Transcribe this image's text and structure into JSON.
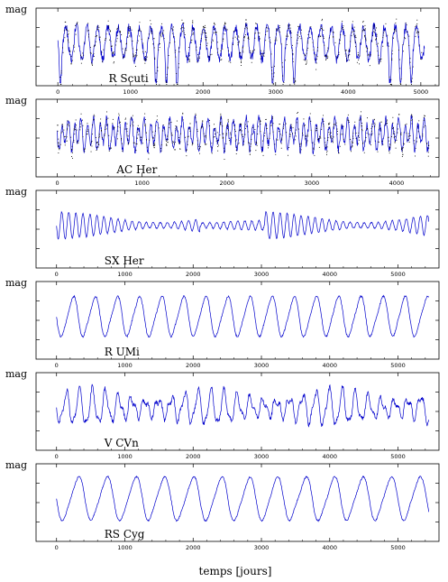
{
  "figure": {
    "xlabel": "temps [jours]"
  },
  "colors": {
    "curve": "#0000cc",
    "points": "#000000",
    "frame": "#000000"
  },
  "chart_data": [
    {
      "type": "line",
      "ylabel": "mag",
      "star": "R Scuti",
      "xlim": [
        -300,
        5250
      ],
      "xticks": [
        0,
        1000,
        2000,
        3000,
        4000,
        5000
      ],
      "xtick_labels": [
        "0",
        "1000",
        "2000",
        "3000",
        "4000",
        "5000"
      ],
      "xmax_data": 5050,
      "period": 146,
      "amp": 0.7,
      "noise": 0.18,
      "mode": "rsct",
      "points_density": 1.0
    },
    {
      "type": "line",
      "ylabel": "mag",
      "star": "AC Her",
      "xlim": [
        -250,
        4500
      ],
      "xticks": [
        0,
        1000,
        2000,
        3000,
        4000
      ],
      "xtick_labels": [
        "0",
        "1000",
        "2000",
        "3000",
        "4000"
      ],
      "xmax_data": 4380,
      "period": 75,
      "amp": 0.45,
      "noise": 0.22,
      "mode": "ach",
      "points_density": 1.0
    },
    {
      "type": "line",
      "ylabel": "mag",
      "star": "SX Her",
      "xlim": [
        -300,
        5600
      ],
      "xticks": [
        0,
        1000,
        2000,
        3000,
        4000,
        5000
      ],
      "xtick_labels": [
        "0",
        "1000",
        "2000",
        "3000",
        "4000",
        "5000"
      ],
      "xmax_data": 5450,
      "period": 103,
      "amp": 0.35,
      "noise": 0.05,
      "mode": "sxh",
      "points_density": 0.0
    },
    {
      "type": "line",
      "ylabel": "mag",
      "star": "R UMi",
      "xlim": [
        -300,
        5600
      ],
      "xticks": [
        0,
        1000,
        2000,
        3000,
        4000,
        5000
      ],
      "xtick_labels": [
        "0",
        "1000",
        "2000",
        "3000",
        "4000",
        "5000"
      ],
      "xmax_data": 5450,
      "period": 326,
      "amp": 0.55,
      "noise": 0.04,
      "mode": "smooth",
      "points_density": 0.0
    },
    {
      "type": "line",
      "ylabel": "mag",
      "star": "V CVn",
      "xlim": [
        -300,
        5600
      ],
      "xticks": [
        0,
        1000,
        2000,
        3000,
        4000,
        5000
      ],
      "xtick_labels": [
        "0",
        "1000",
        "2000",
        "3000",
        "4000",
        "5000"
      ],
      "xmax_data": 5450,
      "period": 192,
      "amp": 0.45,
      "noise": 0.12,
      "mode": "vcvn",
      "points_density": 0.0
    },
    {
      "type": "line",
      "ylabel": "mag",
      "star": "RS Cyg",
      "xlim": [
        -300,
        5600
      ],
      "xticks": [
        0,
        1000,
        2000,
        3000,
        4000,
        5000
      ],
      "xtick_labels": [
        "0",
        "1000",
        "2000",
        "3000",
        "4000",
        "5000"
      ],
      "xmax_data": 5450,
      "period": 417,
      "amp": 0.6,
      "noise": 0.03,
      "mode": "smooth",
      "points_density": 0.0
    }
  ]
}
